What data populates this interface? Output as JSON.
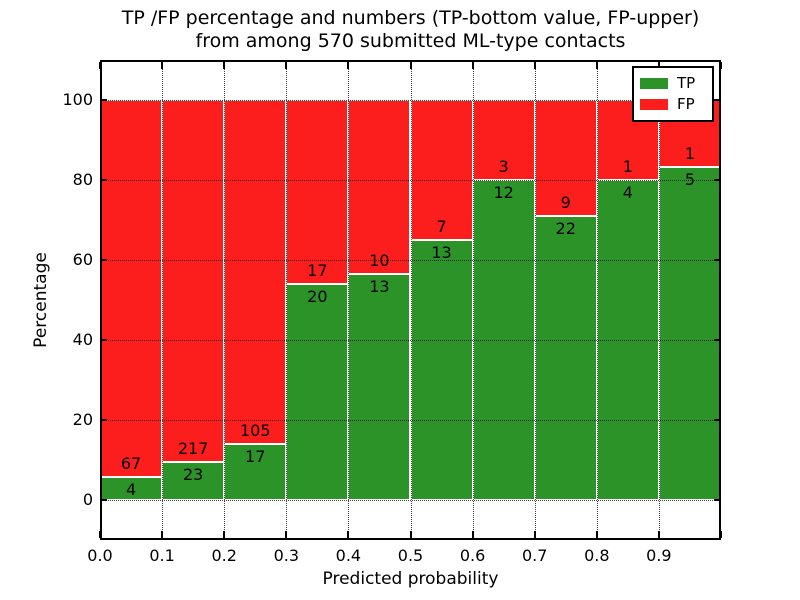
{
  "chart_data": {
    "type": "bar",
    "stacked": true,
    "title_line1": "TP /FP percentage and numbers (TP-bottom value, FP-upper)",
    "title_line2": "from among 570 submitted ML-type contacts",
    "xlabel": "Predicted probability",
    "ylabel": "Percentage",
    "x_tick_labels": [
      "0.0",
      "0.1",
      "0.2",
      "0.3",
      "0.4",
      "0.5",
      "0.6",
      "0.7",
      "0.8",
      "0.9"
    ],
    "y_tick_values": [
      0,
      20,
      40,
      60,
      80,
      100
    ],
    "xlim": [
      0.0,
      1.0
    ],
    "ylim": [
      -10,
      110
    ],
    "grid": "dotted",
    "legend_position": "upper-right",
    "total_contacts": 570,
    "series": [
      {
        "name": "TP",
        "color": "#2b9328"
      },
      {
        "name": "FP",
        "color": "#fc1d1d"
      }
    ],
    "bins": [
      {
        "x_start": 0.0,
        "x_end": 0.1,
        "tp": 4,
        "fp": 67
      },
      {
        "x_start": 0.1,
        "x_end": 0.2,
        "tp": 23,
        "fp": 217
      },
      {
        "x_start": 0.2,
        "x_end": 0.3,
        "tp": 17,
        "fp": 105
      },
      {
        "x_start": 0.3,
        "x_end": 0.4,
        "tp": 20,
        "fp": 17
      },
      {
        "x_start": 0.4,
        "x_end": 0.5,
        "tp": 13,
        "fp": 10
      },
      {
        "x_start": 0.5,
        "x_end": 0.6,
        "tp": 13,
        "fp": 7
      },
      {
        "x_start": 0.6,
        "x_end": 0.7,
        "tp": 12,
        "fp": 3
      },
      {
        "x_start": 0.7,
        "x_end": 0.8,
        "tp": 22,
        "fp": 9
      },
      {
        "x_start": 0.8,
        "x_end": 0.9,
        "tp": 4,
        "fp": 1
      },
      {
        "x_start": 0.9,
        "x_end": 1.0,
        "tp": 5,
        "fp": 1
      }
    ]
  }
}
